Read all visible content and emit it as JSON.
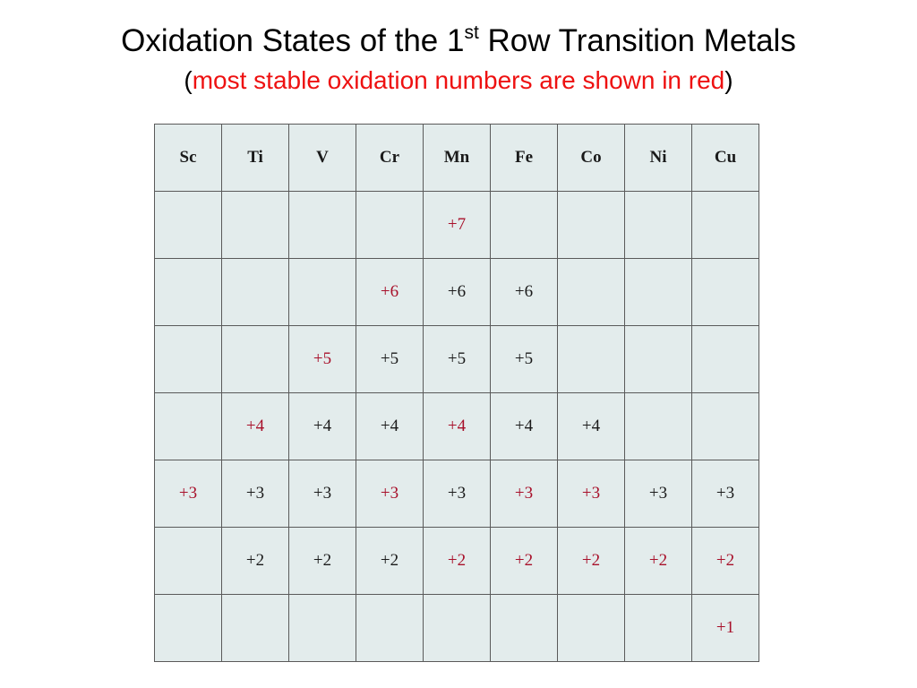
{
  "title": {
    "main_before": "Oxidation States of the 1",
    "sup": "st",
    "main_after": " Row Transition Metals"
  },
  "subtitle": {
    "open": "(",
    "text": "most stable oxidation numbers are shown in red",
    "close": ")"
  },
  "colors": {
    "stable": "#a8102a",
    "normal": "#1a1a1a",
    "cell_bg": "#e3ecec",
    "subtitle_red": "#ee1111"
  },
  "table": {
    "headers": [
      "Sc",
      "Ti",
      "V",
      "Cr",
      "Mn",
      "Fe",
      "Co",
      "Ni",
      "Cu"
    ],
    "rows": [
      [
        "",
        "",
        "",
        "",
        "+7",
        "",
        "",
        "",
        ""
      ],
      [
        "",
        "",
        "",
        "+6",
        "+6",
        "+6",
        "",
        "",
        ""
      ],
      [
        "",
        "",
        "+5",
        "+5",
        "+5",
        "+5",
        "",
        "",
        ""
      ],
      [
        "",
        "+4",
        "+4",
        "+4",
        "+4",
        "+4",
        "+4",
        "",
        ""
      ],
      [
        "+3",
        "+3",
        "+3",
        "+3",
        "+3",
        "+3",
        "+3",
        "+3",
        "+3"
      ],
      [
        "",
        "+2",
        "+2",
        "+2",
        "+2",
        "+2",
        "+2",
        "+2",
        "+2"
      ],
      [
        "",
        "",
        "",
        "",
        "",
        "",
        "",
        "",
        "+1"
      ]
    ],
    "stable": [
      [
        false,
        false,
        false,
        false,
        true,
        false,
        false,
        false,
        false
      ],
      [
        false,
        false,
        false,
        true,
        false,
        false,
        false,
        false,
        false
      ],
      [
        false,
        false,
        true,
        false,
        false,
        false,
        false,
        false,
        false
      ],
      [
        false,
        true,
        false,
        false,
        true,
        false,
        false,
        false,
        false
      ],
      [
        true,
        false,
        false,
        true,
        false,
        true,
        true,
        false,
        false
      ],
      [
        false,
        false,
        false,
        false,
        true,
        true,
        true,
        true,
        true
      ],
      [
        false,
        false,
        false,
        false,
        false,
        false,
        false,
        false,
        true
      ]
    ]
  }
}
